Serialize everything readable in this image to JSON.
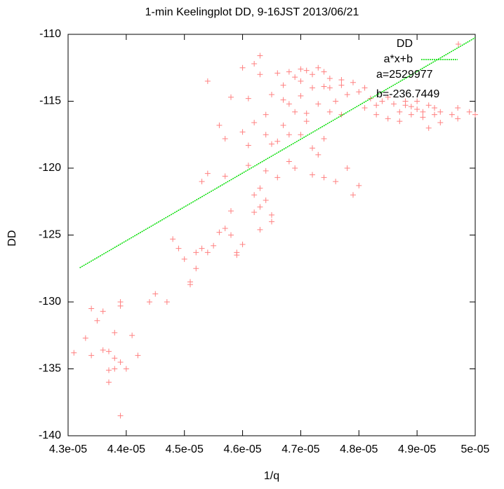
{
  "chart_data": {
    "type": "scatter",
    "title": "1-min Keelingplot DD, 9-16JST 2013/06/21",
    "x_label": "1/q",
    "y_label": "DD",
    "xlim": [
      4.3e-05,
      5e-05
    ],
    "ylim": [
      -140,
      -110
    ],
    "xticks": [
      {
        "value": 4.3e-05,
        "label": "4.3e-05"
      },
      {
        "value": 4.4e-05,
        "label": "4.4e-05"
      },
      {
        "value": 4.5e-05,
        "label": "4.5e-05"
      },
      {
        "value": 4.6e-05,
        "label": "4.6e-05"
      },
      {
        "value": 4.7e-05,
        "label": "4.7e-05"
      },
      {
        "value": 4.8e-05,
        "label": "4.8e-05"
      },
      {
        "value": 4.9e-05,
        "label": "4.9e-05"
      },
      {
        "value": 5e-05,
        "label": "5e-05"
      }
    ],
    "yticks": [
      -110,
      -115,
      -120,
      -125,
      -130,
      -135,
      -140
    ],
    "legend": "upper right",
    "annotations": [
      "a=2529977",
      "b=-236.7449"
    ],
    "series": [
      {
        "name": "DD",
        "type": "scatter",
        "color": "#ff8080",
        "x": [
          4.31e-05,
          4.33e-05,
          4.34e-05,
          4.34e-05,
          4.35e-05,
          4.36e-05,
          4.36e-05,
          4.37e-05,
          4.37e-05,
          4.37e-05,
          4.38e-05,
          4.38e-05,
          4.38e-05,
          4.39e-05,
          4.39e-05,
          4.39e-05,
          4.39e-05,
          4.4e-05,
          4.41e-05,
          4.42e-05,
          4.44e-05,
          4.45e-05,
          4.47e-05,
          4.48e-05,
          4.49e-05,
          4.5e-05,
          4.51e-05,
          4.51e-05,
          4.52e-05,
          4.52e-05,
          4.53e-05,
          4.53e-05,
          4.54e-05,
          4.54e-05,
          4.55e-05,
          4.56e-05,
          4.56e-05,
          4.57e-05,
          4.57e-05,
          4.58e-05,
          4.58e-05,
          4.59e-05,
          4.59e-05,
          4.6e-05,
          4.6e-05,
          4.6e-05,
          4.61e-05,
          4.61e-05,
          4.62e-05,
          4.62e-05,
          4.62e-05,
          4.62e-05,
          4.63e-05,
          4.63e-05,
          4.63e-05,
          4.63e-05,
          4.64e-05,
          4.64e-05,
          4.64e-05,
          4.65e-05,
          4.65e-05,
          4.65e-05,
          4.65e-05,
          4.66e-05,
          4.66e-05,
          4.67e-05,
          4.67e-05,
          4.68e-05,
          4.68e-05,
          4.68e-05,
          4.69e-05,
          4.69e-05,
          4.7e-05,
          4.7e-05,
          4.7e-05,
          4.71e-05,
          4.71e-05,
          4.72e-05,
          4.72e-05,
          4.72e-05,
          4.73e-05,
          4.73e-05,
          4.74e-05,
          4.74e-05,
          4.74e-05,
          4.75e-05,
          4.75e-05,
          4.76e-05,
          4.76e-05,
          4.77e-05,
          4.77e-05,
          4.78e-05,
          4.78e-05,
          4.79e-05,
          4.79e-05,
          4.8e-05,
          4.8e-05,
          4.81e-05,
          4.81e-05,
          4.82e-05,
          4.83e-05,
          4.83e-05,
          4.84e-05,
          4.85e-05,
          4.85e-05,
          4.86e-05,
          4.87e-05,
          4.87e-05,
          4.88e-05,
          4.88e-05,
          4.89e-05,
          4.89e-05,
          4.9e-05,
          4.9e-05,
          4.91e-05,
          4.91e-05,
          4.92e-05,
          4.92e-05,
          4.93e-05,
          4.93e-05,
          4.94e-05,
          4.94e-05,
          4.96e-05,
          4.97e-05,
          4.97e-05,
          4.99e-05,
          5e-05,
          4.66e-05,
          4.69e-05,
          4.72e-05,
          4.74e-05,
          4.67e-05,
          4.71e-05,
          4.63e-05,
          4.64e-05,
          4.61e-05,
          4.57e-05,
          4.54e-05,
          4.58e-05,
          4.75e-05,
          4.77e-05,
          4.68e-05,
          4.73e-05,
          4.7e-05
        ],
        "values": [
          -133.8,
          -132.7,
          -130.5,
          -134.0,
          -131.4,
          -130.7,
          -133.6,
          -135.1,
          -136.0,
          -133.7,
          -134.2,
          -135.0,
          -132.3,
          -134.5,
          -130.0,
          -130.3,
          -138.5,
          -135.0,
          -132.5,
          -134.0,
          -130.0,
          -129.4,
          -130.0,
          -125.3,
          -126.0,
          -126.8,
          -128.7,
          -128.5,
          -127.5,
          -126.3,
          -126.0,
          -121.0,
          -126.3,
          -120.4,
          -125.8,
          -124.8,
          -116.8,
          -124.5,
          -120.6,
          -123.2,
          -125.0,
          -126.3,
          -126.5,
          -125.7,
          -117.3,
          -112.5,
          -114.8,
          -118.3,
          -122.0,
          -123.3,
          -116.6,
          -112.2,
          -121.5,
          -122.9,
          -124.6,
          -111.6,
          -122.4,
          -120.2,
          -117.5,
          -123.5,
          -124.0,
          -118.2,
          -114.5,
          -120.7,
          -118.0,
          -116.8,
          -113.8,
          -117.5,
          -119.5,
          -112.8,
          -115.8,
          -120.0,
          -117.5,
          -113.5,
          -114.6,
          -112.7,
          -116.5,
          -120.5,
          -118.5,
          -113.0,
          -115.2,
          -119.0,
          -112.8,
          -120.7,
          -117.8,
          -114.0,
          -113.3,
          -115.0,
          -121.0,
          -113.8,
          -116.0,
          -114.5,
          -120.0,
          -122.0,
          -113.6,
          -114.3,
          -121.3,
          -114.0,
          -115.5,
          -114.8,
          -116.0,
          -115.3,
          -115.0,
          -114.7,
          -116.3,
          -115.2,
          -115.8,
          -116.5,
          -115.3,
          -115.0,
          -116.0,
          -115.4,
          -115.6,
          -115.0,
          -116.2,
          -115.8,
          -115.3,
          -117.0,
          -116.0,
          -115.5,
          -116.6,
          -115.8,
          -116.0,
          -115.5,
          -116.3,
          -115.8,
          -116.0,
          -112.9,
          -113.2,
          -114.0,
          -113.9,
          -114.9,
          -115.9,
          -113.0,
          -116.0,
          -119.8,
          -117.8,
          -113.5,
          -114.7,
          -115.8,
          -113.4,
          -115.2,
          -112.5,
          -112.6
        ]
      },
      {
        "name": "a*x+b",
        "type": "line",
        "color": "#00dd00",
        "x": [
          4.32e-05,
          5e-05
        ],
        "values": [
          -127.45,
          -110.25
        ]
      }
    ]
  }
}
